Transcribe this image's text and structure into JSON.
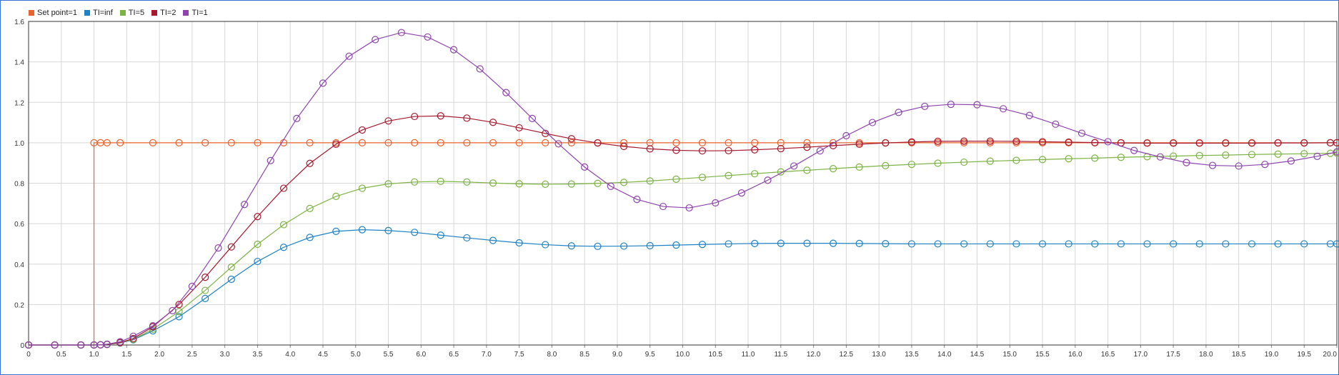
{
  "chart_data": {
    "type": "line",
    "xlim": [
      0,
      20
    ],
    "ylim": [
      0,
      1.6
    ],
    "grid": true,
    "legend_position": "top-left",
    "x_ticks": [
      "0",
      "0.5",
      "1.0",
      "1.5",
      "2.0",
      "2.5",
      "3.0",
      "3.5",
      "4.0",
      "4.5",
      "5.0",
      "5.5",
      "6.0",
      "6.5",
      "7.0",
      "7.5",
      "8.0",
      "8.5",
      "9.0",
      "9.5",
      "10.0",
      "10.5",
      "11.0",
      "11.5",
      "12.0",
      "12.5",
      "13.0",
      "13.5",
      "14.0",
      "14.5",
      "15.0",
      "15.5",
      "16.0",
      "16.5",
      "17.0",
      "17.5",
      "18.0",
      "18.5",
      "19.0",
      "19.5",
      "20.0"
    ],
    "y_ticks": [
      "0",
      "0.2",
      "0.4",
      "0.6",
      "0.8",
      "1.0",
      "1.2",
      "1.4",
      "1.6"
    ],
    "series": [
      {
        "name": "Set point=1",
        "color": "#e8642e",
        "step": true,
        "x": [
          0,
          0.4,
          0.8,
          1.0,
          1.1,
          1.2,
          1.4,
          1.9,
          2.3,
          2.7,
          3.1,
          3.5,
          3.9,
          4.3,
          4.7,
          5.1,
          5.5,
          5.9,
          6.3,
          6.7,
          7.1,
          7.5,
          7.9,
          8.3,
          8.7,
          9.1,
          9.5,
          9.9,
          10.3,
          10.7,
          11.1,
          11.5,
          11.9,
          12.3,
          12.7,
          13.1,
          13.5,
          13.9,
          14.3,
          14.7,
          15.1,
          15.5,
          15.9,
          16.3,
          16.7,
          17.1,
          17.5,
          17.9,
          18.3,
          18.7,
          19.1,
          19.5,
          19.9,
          20.0
        ],
        "y": [
          0,
          0,
          0,
          1,
          1,
          1,
          1,
          1,
          1,
          1,
          1,
          1,
          1,
          1,
          1,
          1,
          1,
          1,
          1,
          1,
          1,
          1,
          1,
          1,
          1,
          1,
          1,
          1,
          1,
          1,
          1,
          1,
          1,
          1,
          1,
          1,
          1,
          1,
          1,
          1,
          1,
          1,
          1,
          1,
          1,
          1,
          1,
          1,
          1,
          1,
          1,
          1,
          1,
          1
        ]
      },
      {
        "name": "TI=inf",
        "color": "#1f82c4",
        "x": [
          0,
          0.4,
          0.8,
          1.0,
          1.1,
          1.2,
          1.4,
          1.6,
          1.9,
          2.3,
          2.7,
          3.1,
          3.5,
          3.9,
          4.3,
          4.7,
          5.1,
          5.5,
          5.9,
          6.3,
          6.7,
          7.1,
          7.5,
          7.9,
          8.3,
          8.7,
          9.1,
          9.5,
          9.9,
          10.3,
          10.7,
          11.1,
          11.5,
          11.9,
          12.3,
          12.7,
          13.1,
          13.5,
          13.9,
          14.3,
          14.7,
          15.1,
          15.5,
          15.9,
          16.3,
          16.7,
          17.1,
          17.5,
          17.9,
          18.3,
          18.7,
          19.1,
          19.5,
          19.9,
          20.0
        ],
        "y": [
          0,
          0,
          0,
          0,
          0.001,
          0.003,
          0.01,
          0.026,
          0.07,
          0.14,
          0.23,
          0.325,
          0.413,
          0.483,
          0.532,
          0.562,
          0.57,
          0.566,
          0.557,
          0.543,
          0.53,
          0.517,
          0.505,
          0.496,
          0.49,
          0.488,
          0.489,
          0.491,
          0.494,
          0.497,
          0.5,
          0.502,
          0.503,
          0.503,
          0.503,
          0.502,
          0.501,
          0.5,
          0.5,
          0.5,
          0.5,
          0.5,
          0.5,
          0.5,
          0.5,
          0.5,
          0.5,
          0.5,
          0.5,
          0.5,
          0.5,
          0.5,
          0.5,
          0.5,
          0.5
        ]
      },
      {
        "name": "TI=5",
        "color": "#7cb342",
        "x": [
          0,
          0.4,
          0.8,
          1.0,
          1.1,
          1.2,
          1.4,
          1.6,
          1.9,
          2.3,
          2.7,
          3.1,
          3.5,
          3.9,
          4.3,
          4.7,
          5.1,
          5.5,
          5.9,
          6.3,
          6.7,
          7.1,
          7.5,
          7.9,
          8.3,
          8.7,
          9.1,
          9.5,
          9.9,
          10.3,
          10.7,
          11.1,
          11.5,
          11.9,
          12.3,
          12.7,
          13.1,
          13.5,
          13.9,
          14.3,
          14.7,
          15.1,
          15.5,
          15.9,
          16.3,
          16.7,
          17.1,
          17.5,
          17.9,
          18.3,
          18.7,
          19.1,
          19.5,
          19.9,
          20.0
        ],
        "y": [
          0,
          0,
          0,
          0,
          0.001,
          0.003,
          0.011,
          0.028,
          0.078,
          0.165,
          0.27,
          0.385,
          0.498,
          0.595,
          0.675,
          0.735,
          0.775,
          0.797,
          0.806,
          0.809,
          0.806,
          0.801,
          0.797,
          0.795,
          0.796,
          0.799,
          0.804,
          0.811,
          0.82,
          0.829,
          0.838,
          0.847,
          0.856,
          0.864,
          0.872,
          0.88,
          0.887,
          0.893,
          0.899,
          0.904,
          0.909,
          0.913,
          0.917,
          0.921,
          0.924,
          0.928,
          0.931,
          0.934,
          0.937,
          0.939,
          0.942,
          0.944,
          0.946,
          0.948,
          0.949
        ]
      },
      {
        "name": "TI=2",
        "color": "#a6192e",
        "x": [
          0,
          0.4,
          0.8,
          1.0,
          1.1,
          1.2,
          1.4,
          1.6,
          1.9,
          2.3,
          2.7,
          3.1,
          3.5,
          3.9,
          4.3,
          4.7,
          5.1,
          5.5,
          5.9,
          6.3,
          6.7,
          7.1,
          7.5,
          7.9,
          8.3,
          8.7,
          9.1,
          9.5,
          9.9,
          10.3,
          10.7,
          11.1,
          11.5,
          11.9,
          12.3,
          12.7,
          13.1,
          13.5,
          13.9,
          14.3,
          14.7,
          15.1,
          15.5,
          15.9,
          16.3,
          16.7,
          17.1,
          17.5,
          17.9,
          18.3,
          18.7,
          19.1,
          19.5,
          19.9,
          20.0
        ],
        "y": [
          0,
          0,
          0,
          0,
          0.001,
          0.003,
          0.012,
          0.032,
          0.09,
          0.2,
          0.335,
          0.485,
          0.635,
          0.775,
          0.898,
          0.993,
          1.063,
          1.108,
          1.13,
          1.133,
          1.122,
          1.101,
          1.074,
          1.046,
          1.02,
          0.999,
          0.982,
          0.97,
          0.963,
          0.96,
          0.961,
          0.965,
          0.971,
          0.978,
          0.986,
          0.993,
          0.999,
          1.004,
          1.007,
          1.008,
          1.008,
          1.007,
          1.005,
          1.003,
          1.001,
          0.999,
          0.998,
          0.998,
          0.998,
          0.998,
          0.998,
          0.999,
          0.999,
          1.0,
          1.0
        ]
      },
      {
        "name": "TI=1",
        "color": "#8e44ad",
        "x": [
          0,
          0.4,
          0.8,
          1.0,
          1.1,
          1.2,
          1.4,
          1.6,
          1.9,
          2.2,
          2.5,
          2.9,
          3.3,
          3.7,
          4.1,
          4.5,
          4.9,
          5.3,
          5.7,
          6.1,
          6.5,
          6.9,
          7.3,
          7.7,
          8.1,
          8.5,
          8.9,
          9.3,
          9.7,
          10.1,
          10.5,
          10.9,
          11.3,
          11.7,
          12.1,
          12.5,
          12.9,
          13.3,
          13.7,
          14.1,
          14.5,
          14.9,
          15.3,
          15.7,
          16.1,
          16.5,
          16.9,
          17.3,
          17.7,
          18.1,
          18.5,
          18.9,
          19.3,
          19.7,
          20.0
        ],
        "y": [
          0,
          0,
          0,
          0,
          0.001,
          0.004,
          0.016,
          0.043,
          0.095,
          0.17,
          0.29,
          0.48,
          0.695,
          0.912,
          1.12,
          1.295,
          1.428,
          1.51,
          1.545,
          1.523,
          1.46,
          1.365,
          1.248,
          1.12,
          0.995,
          0.88,
          0.785,
          0.72,
          0.685,
          0.678,
          0.703,
          0.752,
          0.815,
          0.885,
          0.96,
          1.035,
          1.1,
          1.15,
          1.18,
          1.19,
          1.188,
          1.168,
          1.135,
          1.092,
          1.047,
          1.005,
          0.962,
          0.93,
          0.902,
          0.888,
          0.885,
          0.893,
          0.91,
          0.933,
          0.955
        ]
      }
    ]
  }
}
